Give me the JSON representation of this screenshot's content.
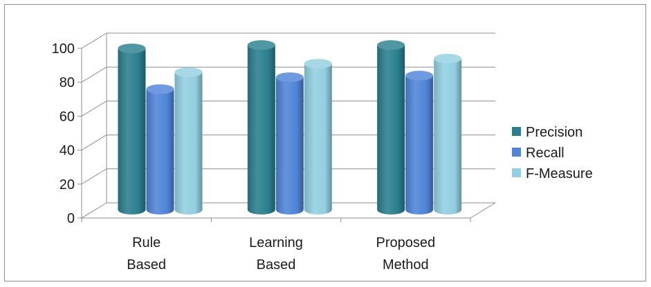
{
  "chart_data": {
    "type": "bar",
    "title": "",
    "xlabel": "",
    "ylabel": "",
    "ylim": [
      0,
      100
    ],
    "yticks": [
      0,
      20,
      40,
      60,
      80,
      100
    ],
    "categories": [
      {
        "line1": "Rule",
        "line2": "Based"
      },
      {
        "line1": "Learning",
        "line2": "Based"
      },
      {
        "line1": "Proposed",
        "line2": "Method"
      }
    ],
    "series": [
      {
        "name": "Precision",
        "values": [
          95,
          97,
          97
        ],
        "color": "#2a7f8f"
      },
      {
        "name": "Recall",
        "values": [
          71,
          78,
          79
        ],
        "color": "#4f84d8"
      },
      {
        "name": "F-Measure",
        "values": [
          81,
          86,
          89
        ],
        "color": "#92cfe0"
      }
    ],
    "grid": true,
    "legend": "right",
    "style": "3d-cylinder"
  }
}
